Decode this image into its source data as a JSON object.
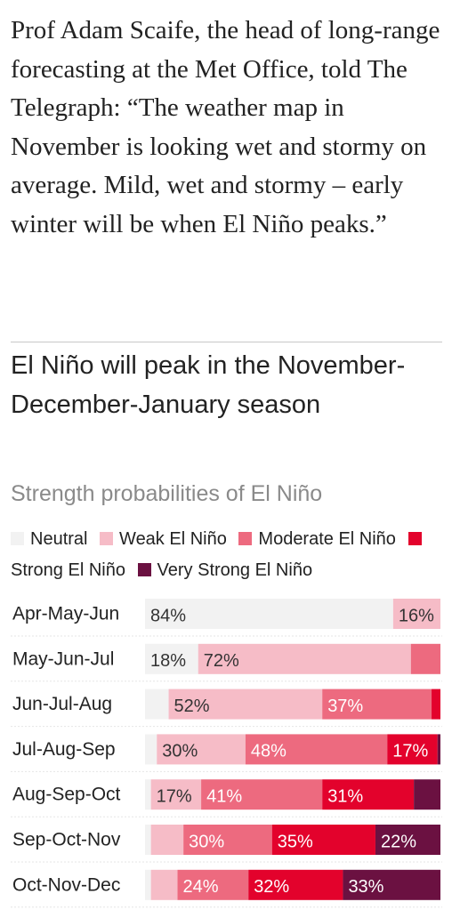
{
  "paragraph": "Prof Adam Scaife, the head of long-range forecasting at the Met Office, told The Telegraph: “The weather map in November is looking wet and stormy on average. Mild, wet and stormy – early winter will be when El Niño peaks.”",
  "chart_data": {
    "type": "stacked-bar-horizontal",
    "title": "El Niño will peak in the November-December-January season",
    "subtitle": "Strength probabilities of El Niño",
    "categories": [
      "Apr-May-Jun",
      "May-Jun-Jul",
      "Jun-Jul-Aug",
      "Jul-Aug-Sep",
      "Aug-Sep-Oct",
      "Sep-Oct-Nov",
      "Oct-Nov-Dec"
    ],
    "xlim": [
      0,
      100
    ],
    "series": [
      {
        "name": "Neutral",
        "color": "#f2f2f2",
        "values": [
          84,
          18,
          8,
          4,
          2,
          2,
          2
        ],
        "value_labels": [
          "84%",
          "18%",
          null,
          null,
          null,
          null,
          null
        ]
      },
      {
        "name": "Weak El Niño",
        "color": "#f6bcc7",
        "values": [
          16,
          72,
          52,
          30,
          17,
          11,
          9
        ],
        "value_labels": [
          "16%",
          "72%",
          "52%",
          "30%",
          "17%",
          null,
          null
        ]
      },
      {
        "name": "Moderate El Niño",
        "color": "#ed6a7f",
        "values": [
          0,
          10,
          37,
          48,
          41,
          30,
          24
        ],
        "value_labels": [
          null,
          null,
          "37%",
          "48%",
          "41%",
          "30%",
          "24%"
        ]
      },
      {
        "name": "Strong El Niño",
        "color": "#e3022c",
        "values": [
          0,
          0,
          3,
          17,
          31,
          35,
          32
        ],
        "value_labels": [
          null,
          null,
          null,
          "17%",
          "31%",
          "35%",
          "32%"
        ]
      },
      {
        "name": "Very Strong El Niño",
        "color": "#6b1141",
        "values": [
          0,
          0,
          0,
          1,
          9,
          22,
          33
        ],
        "value_labels": [
          null,
          null,
          null,
          null,
          null,
          "22%",
          "33%"
        ]
      }
    ]
  }
}
